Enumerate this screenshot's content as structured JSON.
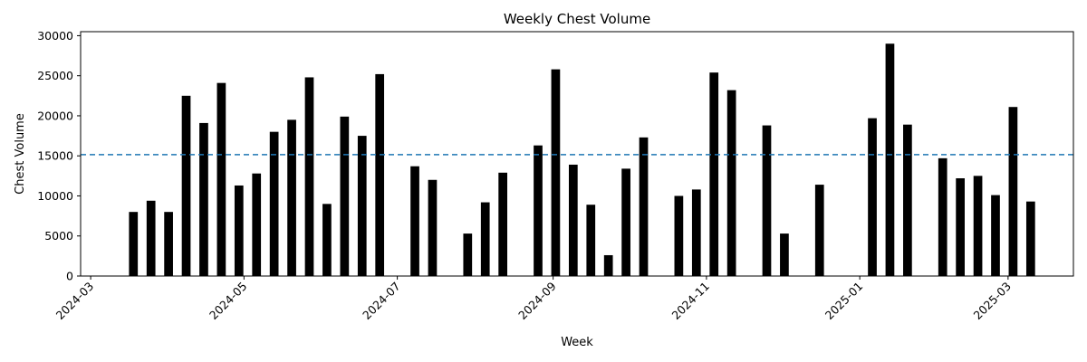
{
  "chart_data": {
    "type": "bar",
    "title": "Weekly Chest Volume",
    "xlabel": "Week",
    "ylabel": "Chest Volume",
    "ylim": [
      0,
      30500
    ],
    "xlim": [
      "2024-02-26",
      "2025-03-27"
    ],
    "yticks": [
      0,
      5000,
      10000,
      15000,
      20000,
      25000,
      30000
    ],
    "xticks": [
      "2024-03",
      "2024-05",
      "2024-07",
      "2024-09",
      "2024-11",
      "2025-01",
      "2025-03"
    ],
    "bar_color": "#000000",
    "grid": false,
    "reference_line": {
      "value": 15150,
      "style": "dashed",
      "color": "#1f77b4"
    },
    "x": [
      "2024-03-18",
      "2024-03-25",
      "2024-04-01",
      "2024-04-08",
      "2024-04-15",
      "2024-04-22",
      "2024-04-29",
      "2024-05-06",
      "2024-05-13",
      "2024-05-20",
      "2024-05-27",
      "2024-06-03",
      "2024-06-10",
      "2024-06-17",
      "2024-06-24",
      "2024-07-08",
      "2024-07-15",
      "2024-07-29",
      "2024-08-05",
      "2024-08-12",
      "2024-08-26",
      "2024-09-02",
      "2024-09-09",
      "2024-09-16",
      "2024-09-23",
      "2024-09-30",
      "2024-10-07",
      "2024-10-21",
      "2024-10-28",
      "2024-11-04",
      "2024-11-11",
      "2024-11-25",
      "2024-12-02",
      "2024-12-16",
      "2025-01-06",
      "2025-01-13",
      "2025-01-20",
      "2025-02-03",
      "2025-02-10",
      "2025-02-17",
      "2025-02-24",
      "2025-03-03",
      "2025-03-10"
    ],
    "values": [
      8000,
      9400,
      8000,
      22500,
      19100,
      24100,
      11300,
      12800,
      18000,
      19500,
      24800,
      9000,
      19900,
      17500,
      25200,
      13700,
      12000,
      5300,
      9200,
      12900,
      16300,
      25800,
      13900,
      8900,
      2600,
      13400,
      17300,
      10000,
      10800,
      25400,
      23200,
      18800,
      5300,
      11400,
      19700,
      29000,
      18900,
      14700,
      12200,
      12500,
      10100,
      21100,
      9300
    ]
  }
}
